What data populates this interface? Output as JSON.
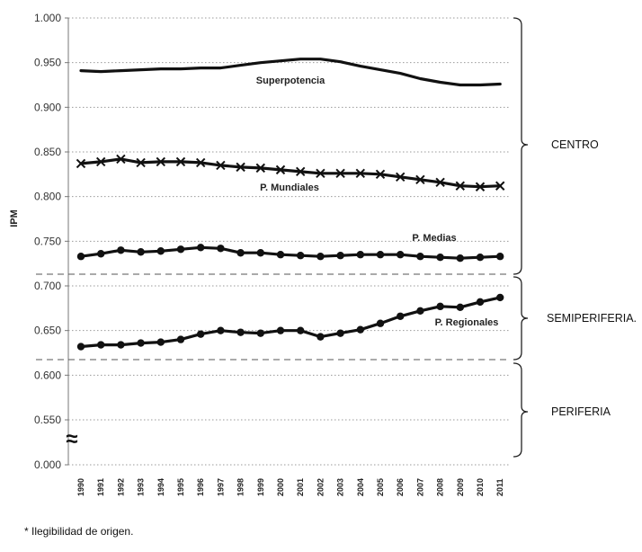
{
  "chart_data": {
    "type": "line",
    "ylabel": "IPM",
    "xlabel": "",
    "y_ticks": [
      "1.000",
      "0.950",
      "0.900",
      "0.850",
      "0.800",
      "0.750",
      "0.700",
      "0.650",
      "0.600",
      "0.550",
      "0.000"
    ],
    "axis_break_symbol": "≈",
    "grid": "dotted horizontal",
    "categories": [
      "1990",
      "1991",
      "1992",
      "1993",
      "1994",
      "1995",
      "1996",
      "1997",
      "1998",
      "1999",
      "2000",
      "2001",
      "2002",
      "2003",
      "2004",
      "2005",
      "2006",
      "2007",
      "2008",
      "2009",
      "2010",
      "2011"
    ],
    "series": [
      {
        "name": "Superpotencia",
        "marker": "none",
        "values": [
          0.941,
          0.94,
          0.941,
          0.942,
          0.943,
          0.943,
          0.944,
          0.944,
          0.947,
          0.95,
          0.952,
          0.954,
          0.954,
          0.951,
          0.946,
          0.942,
          0.938,
          0.932,
          0.928,
          0.925,
          0.925,
          0.926
        ]
      },
      {
        "name": "P. Mundiales",
        "marker": "x",
        "values": [
          0.837,
          0.839,
          0.842,
          0.838,
          0.839,
          0.839,
          0.838,
          0.835,
          0.833,
          0.832,
          0.83,
          0.828,
          0.826,
          0.826,
          0.826,
          0.825,
          0.822,
          0.819,
          0.816,
          0.812,
          0.811,
          0.812
        ]
      },
      {
        "name": "P. Medias",
        "marker": "circle",
        "values": [
          0.733,
          0.736,
          0.74,
          0.738,
          0.739,
          0.741,
          0.743,
          0.742,
          0.737,
          0.737,
          0.735,
          0.734,
          0.733,
          0.734,
          0.735,
          0.735,
          0.735,
          0.733,
          0.732,
          0.731,
          0.732,
          0.733
        ]
      },
      {
        "name": "P. Regionales",
        "marker": "circle",
        "values": [
          0.632,
          0.634,
          0.634,
          0.636,
          0.637,
          0.64,
          0.646,
          0.65,
          0.648,
          0.647,
          0.65,
          0.65,
          0.643,
          0.647,
          0.651,
          0.658,
          0.666,
          0.672,
          0.677,
          0.676,
          0.682,
          0.687
        ]
      }
    ],
    "zones": [
      {
        "label": "CENTRO",
        "from": 0.712,
        "to": 1.0
      },
      {
        "label": "SEMIPERIFERIA.",
        "from": 0.617,
        "to": 0.712
      },
      {
        "label": "PERIFERIA",
        "from": 0.0,
        "to": 0.617
      }
    ],
    "footnote": "* Ilegibilidad de origen."
  }
}
